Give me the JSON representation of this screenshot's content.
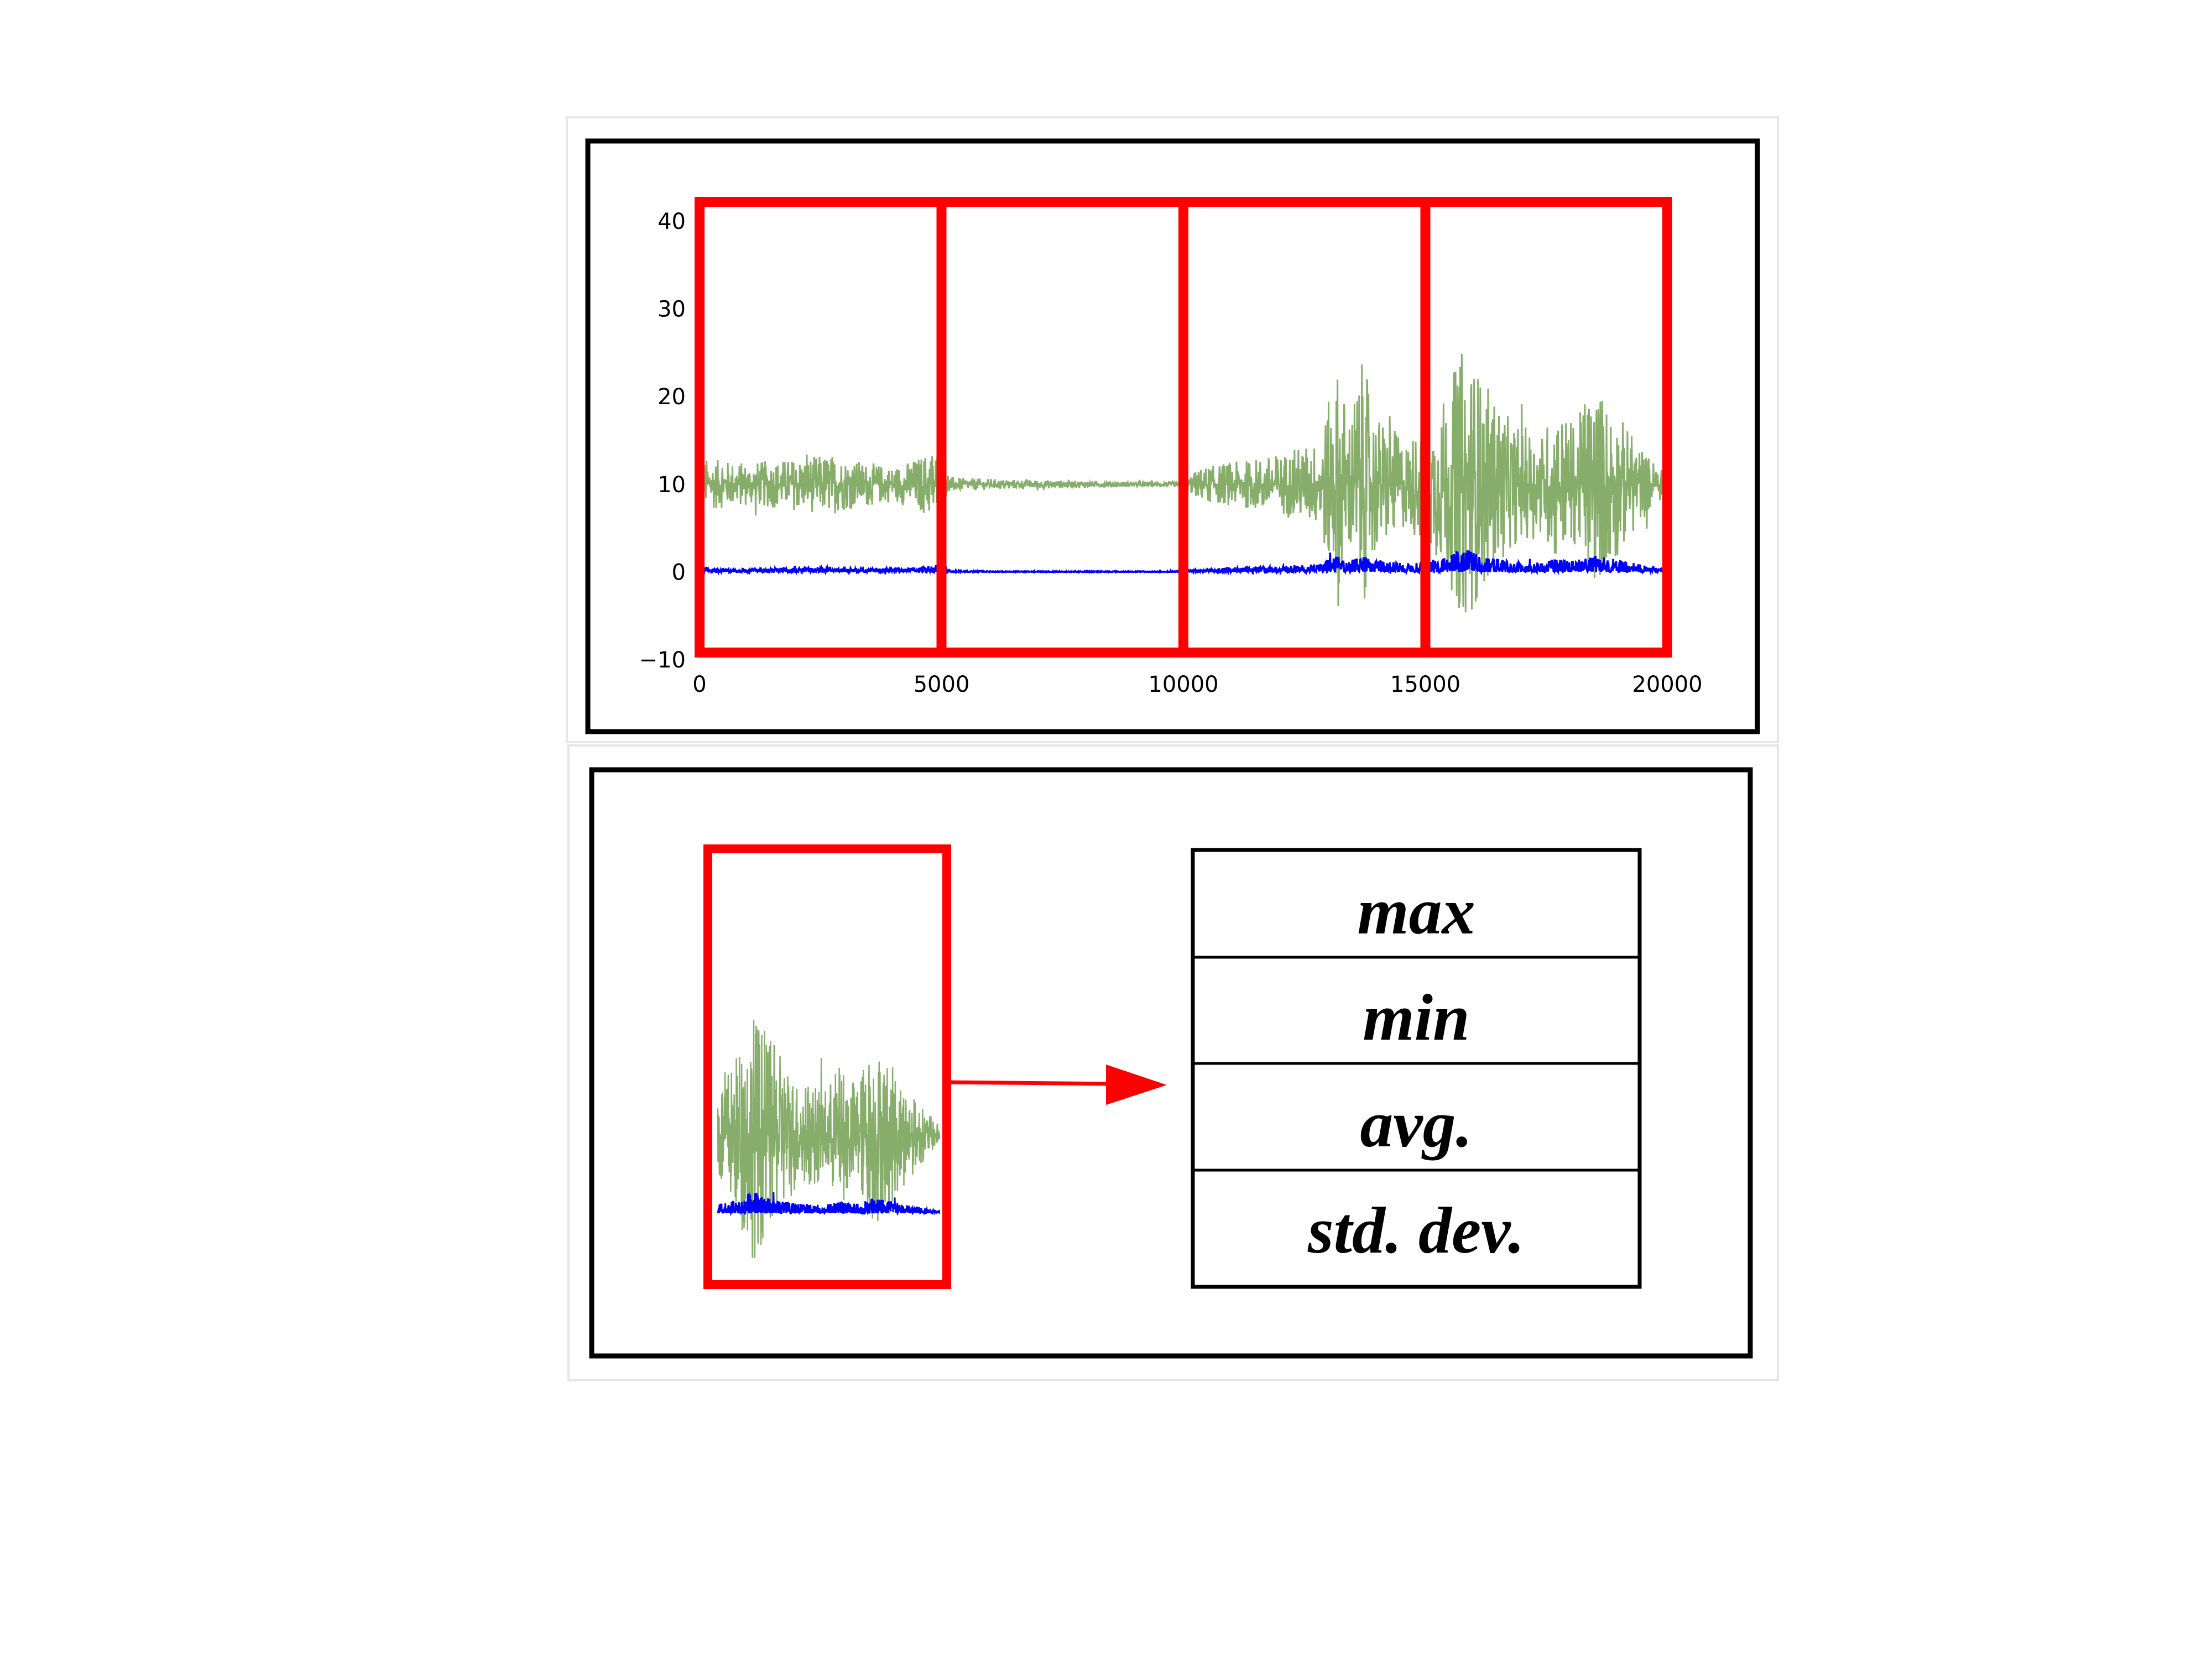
{
  "colors": {
    "frame": "#000000",
    "window": "#ff0000",
    "signal_green": "#86ad6a",
    "signal_blue": "#0000ff",
    "panel_border": "#e6e6e6"
  },
  "chart_data": {
    "type": "line",
    "title": "",
    "xlabel": "",
    "ylabel": "",
    "xlim": [
      0,
      20000
    ],
    "ylim": [
      -10,
      40
    ],
    "x_ticks": [
      "0",
      "5000",
      "10000",
      "15000",
      "20000"
    ],
    "y_ticks": [
      "40",
      "30",
      "20",
      "10",
      "0",
      "−10"
    ],
    "grid": false,
    "windows": [
      {
        "start": 0,
        "end": 5000
      },
      {
        "start": 5000,
        "end": 10000
      },
      {
        "start": 10000,
        "end": 15000
      },
      {
        "start": 15000,
        "end": 20000
      }
    ],
    "series": [
      {
        "color": "#86ad6a",
        "baseline": 10,
        "x": [
          0,
          1000,
          2000,
          2700,
          3000,
          3500,
          4000,
          4500,
          4900,
          5200,
          6000,
          7000,
          8000,
          9000,
          9900,
          10400,
          11000,
          12000,
          12800,
          13200,
          13400,
          13700,
          14000,
          14600,
          15300,
          15800,
          16200,
          16800,
          17400,
          17700,
          18100,
          18500,
          19000,
          19500,
          20000
        ],
        "amplitude": [
          3.0,
          2.5,
          3.0,
          3.5,
          3.0,
          2.5,
          2.0,
          3.0,
          4.5,
          0.8,
          0.6,
          0.5,
          0.4,
          0.3,
          0.3,
          2.0,
          2.5,
          3.5,
          5.0,
          14.0,
          8.0,
          14.0,
          8.0,
          5.0,
          9.0,
          16.0,
          12.0,
          7.0,
          6.0,
          9.0,
          7.0,
          12.0,
          8.0,
          4.0,
          1.0
        ]
      },
      {
        "color": "#0000ff",
        "baseline": 0,
        "x": [
          0,
          1000,
          2000,
          2700,
          3000,
          3500,
          4000,
          4500,
          4900,
          5200,
          6000,
          7000,
          8000,
          9000,
          9900,
          10400,
          11000,
          12000,
          12800,
          13200,
          13400,
          13700,
          14000,
          14600,
          15300,
          15800,
          16200,
          16800,
          17400,
          17700,
          18100,
          18500,
          19000,
          19500,
          20000
        ],
        "amplitude": [
          0.4,
          0.4,
          0.5,
          0.6,
          0.5,
          0.4,
          0.4,
          0.6,
          0.9,
          0.2,
          0.1,
          0.1,
          0.1,
          0.1,
          0.1,
          0.4,
          0.5,
          0.7,
          0.9,
          1.9,
          1.4,
          1.8,
          1.3,
          1.0,
          1.5,
          2.8,
          1.8,
          1.2,
          1.1,
          1.5,
          1.3,
          1.9,
          1.4,
          0.8,
          0.3
        ]
      }
    ]
  },
  "feature_table": {
    "rows": [
      "max",
      "min",
      "avg.",
      "std. dev."
    ]
  }
}
